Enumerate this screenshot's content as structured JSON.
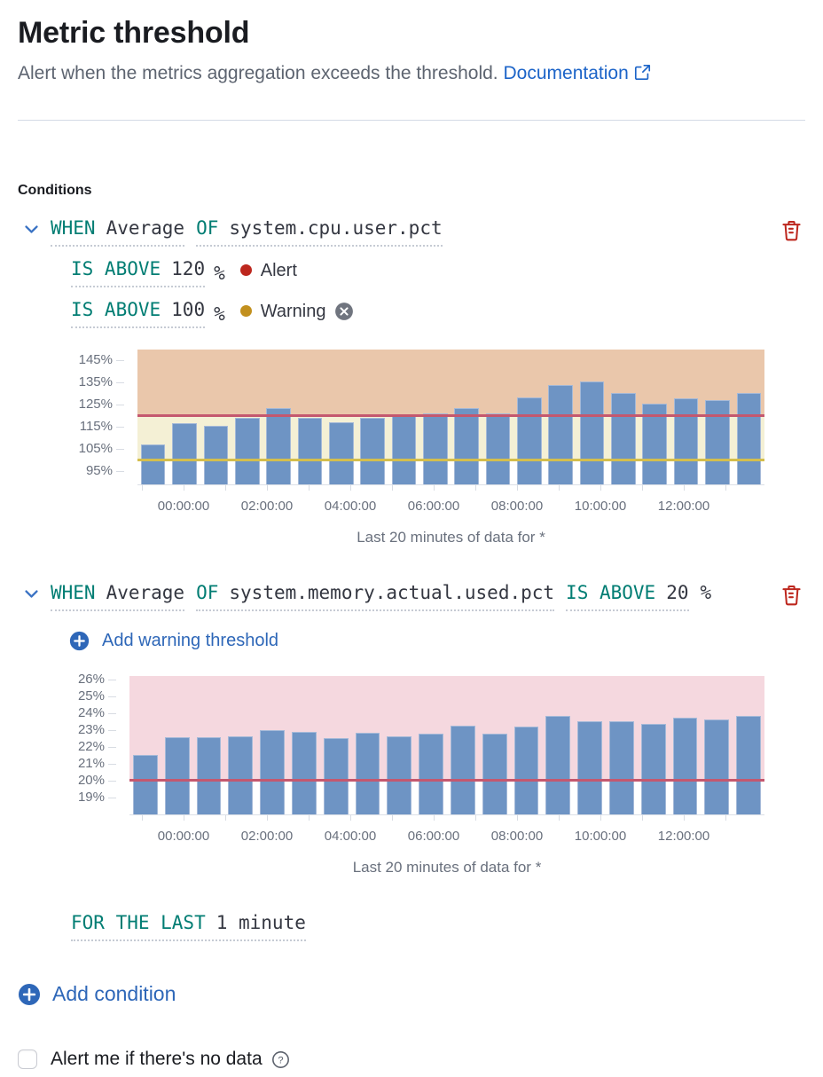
{
  "header": {
    "title": "Metric threshold",
    "subtitle": "Alert when the metrics aggregation exceeds the threshold.",
    "doc_link_label": "Documentation"
  },
  "conditions": {
    "label": "Conditions",
    "items": [
      {
        "expressions": [
          {
            "keyword": "WHEN",
            "value": "Average"
          },
          {
            "keyword": "OF",
            "value": "system.cpu.user.pct"
          }
        ],
        "thresholds": [
          {
            "keyword": "IS ABOVE",
            "value": "120",
            "unit": "%",
            "severity_label": "Alert",
            "dot_color": "#bd271e"
          },
          {
            "keyword": "IS ABOVE",
            "value": "100",
            "unit": "%",
            "severity_label": "Warning",
            "dot_color": "#c2901e",
            "dismissible": true
          }
        ]
      },
      {
        "expressions": [
          {
            "keyword": "WHEN",
            "value": "Average"
          },
          {
            "keyword": "OF",
            "value": "system.memory.actual.used.pct"
          },
          {
            "keyword": "IS ABOVE",
            "value": "20"
          }
        ],
        "unit": "%",
        "add_warning_label": "Add warning threshold"
      }
    ],
    "for_the_last": {
      "keyword": "FOR THE LAST",
      "value": "1 minute"
    },
    "add_condition_label": "Add condition"
  },
  "footer": {
    "no_data_label": "Alert me if there's no data",
    "checkbox_checked": false
  },
  "colors": {
    "keyword_teal": "#017d73",
    "link_blue": "#1c64c8",
    "action_blue": "#2e67b8",
    "danger_red": "#bd271e",
    "warning_gold": "#c2901e",
    "bar_blue": "#6e94c4"
  },
  "chart_data": [
    {
      "type": "bar",
      "metric": "system.cpu.user.pct",
      "caption": "Last 20 minutes of data for *",
      "ylim": [
        89,
        150
      ],
      "yticks": [
        {
          "label": "145%",
          "value": 145
        },
        {
          "label": "135%",
          "value": 135
        },
        {
          "label": "125%",
          "value": 125
        },
        {
          "label": "115%",
          "value": 115
        },
        {
          "label": "105%",
          "value": 105
        },
        {
          "label": "95%",
          "value": 95
        }
      ],
      "x_tick_labels": [
        "00:00:00",
        "02:00:00",
        "04:00:00",
        "06:00:00",
        "08:00:00",
        "10:00:00",
        "12:00:00"
      ],
      "values": [
        107,
        116.5,
        115.5,
        119,
        123.5,
        119,
        117,
        119,
        120.5,
        121,
        123.5,
        121,
        128.5,
        134,
        135.5,
        130.5,
        125.5,
        128,
        127,
        130.5
      ],
      "bar_color": "#6e94c4",
      "thresholds": [
        {
          "value": 120,
          "color": "#c4586f",
          "name": "alert-threshold"
        },
        {
          "value": 100,
          "color": "#d4be4d",
          "name": "warning-threshold"
        }
      ],
      "zones": [
        {
          "from": 120,
          "to": 150,
          "color": "#eac7ab",
          "name": "alert-zone"
        },
        {
          "from": 100,
          "to": 120,
          "color": "#f4f0d5",
          "name": "warning-zone"
        }
      ],
      "grid": false,
      "legend": false
    },
    {
      "type": "bar",
      "metric": "system.memory.actual.used.pct",
      "caption": "Last 20 minutes of data for *",
      "ylim": [
        18,
        26.2
      ],
      "yticks": [
        {
          "label": "26%",
          "value": 26
        },
        {
          "label": "25%",
          "value": 25
        },
        {
          "label": "24%",
          "value": 24
        },
        {
          "label": "23%",
          "value": 23
        },
        {
          "label": "22%",
          "value": 22
        },
        {
          "label": "21%",
          "value": 21
        },
        {
          "label": "20%",
          "value": 20
        },
        {
          "label": "19%",
          "value": 19
        }
      ],
      "x_tick_labels": [
        "00:00:00",
        "02:00:00",
        "04:00:00",
        "06:00:00",
        "08:00:00",
        "10:00:00",
        "12:00:00"
      ],
      "values": [
        21.5,
        22.55,
        22.6,
        22.65,
        23.0,
        22.9,
        22.5,
        22.85,
        22.65,
        22.8,
        23.25,
        22.8,
        23.2,
        23.85,
        23.5,
        23.5,
        23.35,
        23.75,
        23.65,
        23.85
      ],
      "bar_color": "#6e94c4",
      "thresholds": [
        {
          "value": 20,
          "color": "#c4586f",
          "name": "alert-threshold"
        }
      ],
      "zones": [
        {
          "from": 20,
          "to": 26.2,
          "color": "#f5d8df",
          "name": "alert-zone"
        }
      ],
      "grid": false,
      "legend": false
    }
  ]
}
